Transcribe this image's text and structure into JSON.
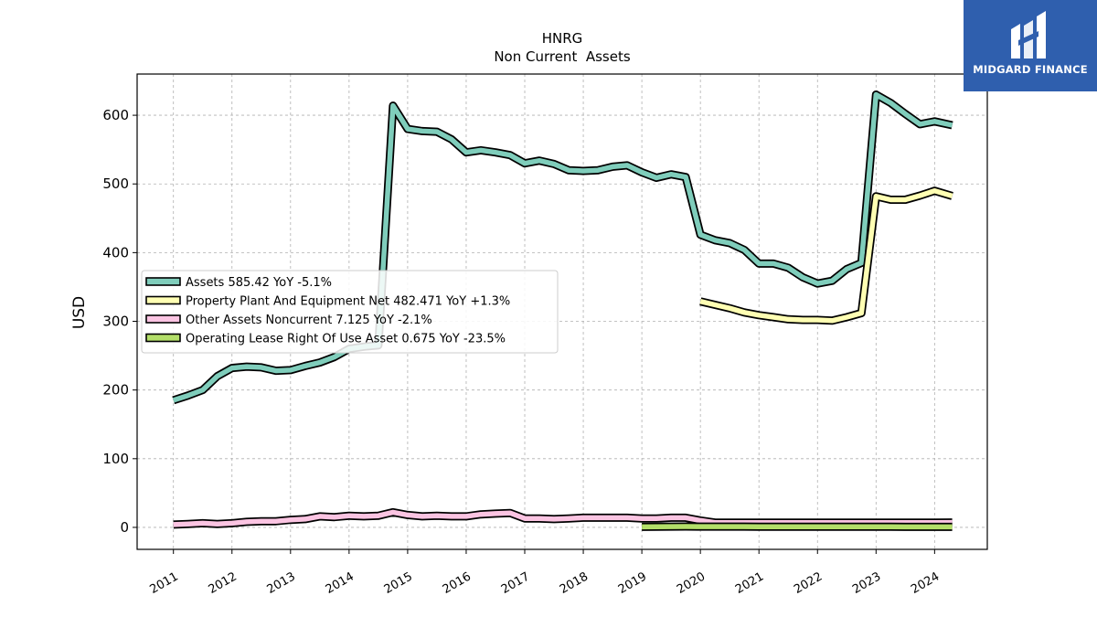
{
  "chart_data": {
    "type": "line",
    "title": "HNRG",
    "subtitle": "Non Current  Assets",
    "xlabel": "",
    "ylabel": "USD",
    "ylim": [
      -32,
      660
    ],
    "xlim": [
      2010.38,
      2024.9
    ],
    "yticks": [
      0,
      100,
      200,
      300,
      400,
      500,
      600
    ],
    "xticks": [
      "2011",
      "2012",
      "2013",
      "2014",
      "2015",
      "2016",
      "2017",
      "2018",
      "2019",
      "2020",
      "2021",
      "2022",
      "2023",
      "2024"
    ],
    "grid": true,
    "legend_position": "center-left",
    "series": [
      {
        "name": "Assets",
        "legend": "Assets  585.42 YoY -5.1%",
        "color": "#7fcdbb",
        "x": [
          2011.0,
          2011.25,
          2011.5,
          2011.75,
          2012.0,
          2012.25,
          2012.5,
          2012.75,
          2013.0,
          2013.25,
          2013.5,
          2013.75,
          2014.0,
          2014.25,
          2014.5,
          2014.75,
          2015.0,
          2015.25,
          2015.5,
          2015.75,
          2016.0,
          2016.25,
          2016.5,
          2016.75,
          2017.0,
          2017.25,
          2017.5,
          2017.75,
          2018.0,
          2018.25,
          2018.5,
          2018.75,
          2019.0,
          2019.25,
          2019.5,
          2019.75,
          2020.0,
          2020.25,
          2020.5,
          2020.75,
          2021.0,
          2021.25,
          2021.5,
          2021.75,
          2022.0,
          2022.25,
          2022.5,
          2022.75,
          2023.0,
          2023.25,
          2023.5,
          2023.75,
          2024.0,
          2024.3
        ],
        "values": [
          185,
          192,
          200,
          220,
          232,
          234,
          233,
          228,
          229,
          235,
          240,
          248,
          260,
          263,
          265,
          614,
          580,
          577,
          576,
          565,
          546,
          549,
          546,
          542,
          530,
          534,
          529,
          520,
          519,
          520,
          525,
          527,
          517,
          509,
          514,
          510,
          426,
          418,
          414,
          404,
          384,
          384,
          378,
          364,
          355,
          359,
          376,
          385,
          630,
          618,
          602,
          587,
          591,
          585.42
        ]
      },
      {
        "name": "Property Plant And Equipment Net",
        "legend": "Property Plant And Equipment Net  482.471 YoY +1.3%",
        "color": "#ffffb3",
        "x": [
          2020.0,
          2020.25,
          2020.5,
          2020.75,
          2021.0,
          2021.25,
          2021.5,
          2021.75,
          2022.0,
          2022.25,
          2022.5,
          2022.75,
          2023.0,
          2023.25,
          2023.5,
          2023.75,
          2024.0,
          2024.3
        ],
        "values": [
          329,
          324,
          319,
          313,
          309,
          306,
          303,
          302,
          302,
          301,
          306,
          312,
          482,
          477,
          477,
          483,
          490,
          482.471
        ]
      },
      {
        "name": "Other Assets Noncurrent",
        "legend": "Other Assets Noncurrent  7.125 YoY -2.1%",
        "color": "#fbc4e2",
        "x": [
          2011.0,
          2011.25,
          2011.5,
          2011.75,
          2012.0,
          2012.25,
          2012.5,
          2012.75,
          2013.0,
          2013.25,
          2013.5,
          2013.75,
          2014.0,
          2014.25,
          2014.5,
          2014.75,
          2015.0,
          2015.25,
          2015.5,
          2015.75,
          2016.0,
          2016.25,
          2016.5,
          2016.75,
          2017.0,
          2017.25,
          2017.5,
          2017.75,
          2018.0,
          2018.25,
          2018.5,
          2018.75,
          2019.0,
          2019.25,
          2019.5,
          2019.75,
          2020.0,
          2020.25,
          2020.5,
          2020.75,
          2021.0,
          2021.25,
          2021.5,
          2021.75,
          2022.0,
          2022.25,
          2022.5,
          2022.75,
          2023.0,
          2023.25,
          2023.5,
          2023.75,
          2024.0,
          2024.3
        ],
        "values": [
          4,
          5,
          6,
          5,
          6,
          8,
          9,
          9,
          11,
          12,
          16,
          15,
          17,
          16,
          17,
          22,
          18,
          16,
          17,
          16,
          16,
          19,
          20,
          21,
          13,
          13,
          12,
          13,
          14,
          14,
          14,
          14,
          13,
          13,
          14,
          14,
          10,
          7,
          7,
          7,
          7,
          7,
          7,
          7,
          7,
          7,
          7,
          7,
          7,
          7,
          7,
          7,
          7,
          7.125
        ]
      },
      {
        "name": "Operating Lease Right Of Use Asset",
        "legend": "Operating Lease Right Of Use Asset  0.675 YoY -23.5%",
        "color": "#b3de69",
        "x": [
          2019.0,
          2019.25,
          2019.5,
          2019.75,
          2020.0,
          2020.25,
          2020.5,
          2020.75,
          2021.0,
          2021.25,
          2021.5,
          2021.75,
          2022.0,
          2022.25,
          2022.5,
          2022.75,
          2023.0,
          2023.25,
          2023.5,
          2023.75,
          2024.0,
          2024.3
        ],
        "values": [
          0.8,
          0.9,
          1.2,
          1.3,
          1.2,
          1.2,
          1.1,
          1.1,
          1.0,
          1.0,
          1.0,
          1.0,
          1.0,
          1.0,
          0.9,
          0.9,
          0.9,
          0.9,
          0.8,
          0.8,
          0.7,
          0.675
        ]
      }
    ]
  },
  "logo": {
    "text": "MIDGARD FINANCE"
  }
}
